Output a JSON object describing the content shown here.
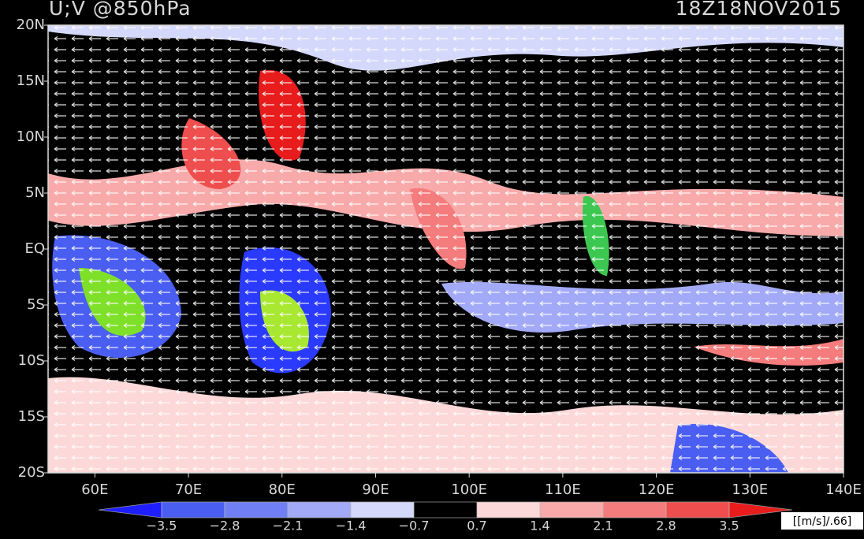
{
  "map": {
    "title": "U;V @850hPa",
    "time": "18Z18NOV2015",
    "lonlim": [
      55,
      140
    ],
    "latlim": [
      -20,
      20
    ],
    "lon_ticks": [
      {
        "value": 60,
        "label": "60E"
      },
      {
        "value": 70,
        "label": "70E"
      },
      {
        "value": 80,
        "label": "80E"
      },
      {
        "value": 90,
        "label": "90E"
      },
      {
        "value": 100,
        "label": "100E"
      },
      {
        "value": 110,
        "label": "110E"
      },
      {
        "value": 120,
        "label": "120E"
      },
      {
        "value": 130,
        "label": "130E"
      },
      {
        "value": 140,
        "label": "140E"
      }
    ],
    "lat_ticks": [
      {
        "value": 20,
        "label": "20N"
      },
      {
        "value": 15,
        "label": "15N"
      },
      {
        "value": 10,
        "label": "10N"
      },
      {
        "value": 5,
        "label": "5N"
      },
      {
        "value": 0,
        "label": "EQ"
      },
      {
        "value": -5,
        "label": "5S"
      },
      {
        "value": -10,
        "label": "10S"
      },
      {
        "value": -15,
        "label": "15S"
      },
      {
        "value": -20,
        "label": "20S"
      }
    ],
    "colorbar": {
      "ticks": [
        {
          "value": -3.5,
          "label": "−3.5"
        },
        {
          "value": -2.8,
          "label": "−2.8"
        },
        {
          "value": -2.1,
          "label": "−2.1"
        },
        {
          "value": -1.4,
          "label": "−1.4"
        },
        {
          "value": -0.7,
          "label": "−0.7"
        },
        0.7,
        1.4,
        2.1,
        2.8,
        3.5
      ],
      "colors": [
        "#1e1eff",
        "#4a5ef2",
        "#7080f4",
        "#a2aaf7",
        "#d4d8fb",
        "#000000",
        "#fcd8d8",
        "#f8aaaa",
        "#f47c7c",
        "#ef4e4e",
        "#e81c1c"
      ],
      "unit": "[[m/s]/.66]"
    }
  }
}
